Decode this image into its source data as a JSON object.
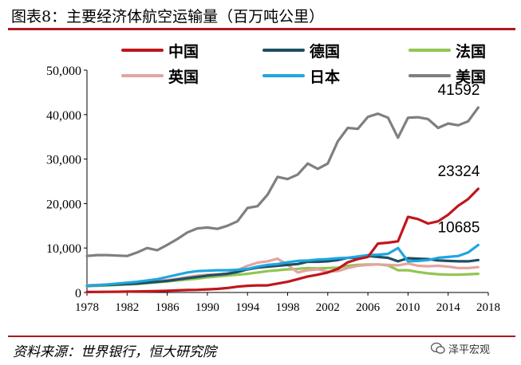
{
  "title": "图表8：主要经济体航空运输量（百万吨公里）",
  "source": "资料来源：世界银行，恒大研究院",
  "brand": "泽平宏观",
  "chart_data": {
    "type": "line",
    "title": "图表8：主要经济体航空运输量（百万吨公里）",
    "xlabel": "",
    "ylabel": "",
    "xlim": [
      1978,
      2018
    ],
    "ylim": [
      0,
      50000
    ],
    "x_ticks": [
      "1978",
      "1982",
      "1986",
      "1990",
      "1994",
      "1998",
      "2002",
      "2006",
      "2010",
      "2014",
      "2018"
    ],
    "y_ticks": [
      "0",
      "10,000",
      "20,000",
      "30,000",
      "40,000",
      "50,000"
    ],
    "x": [
      1978,
      1979,
      1980,
      1981,
      1982,
      1983,
      1984,
      1985,
      1986,
      1987,
      1988,
      1989,
      1990,
      1991,
      1992,
      1993,
      1994,
      1995,
      1996,
      1997,
      1998,
      1999,
      2000,
      2001,
      2002,
      2003,
      2004,
      2005,
      2006,
      2007,
      2008,
      2009,
      2010,
      2011,
      2012,
      2013,
      2014,
      2015,
      2016,
      2017
    ],
    "series": [
      {
        "name": "中国",
        "color": "#c0161c",
        "values": [
          100,
          120,
          140,
          170,
          200,
          230,
          270,
          330,
          400,
          470,
          550,
          600,
          700,
          800,
          1000,
          1300,
          1500,
          1600,
          1600,
          2000,
          2400,
          3000,
          3600,
          4000,
          4500,
          5300,
          6800,
          7500,
          8000,
          11000,
          11200,
          11500,
          17000,
          16500,
          15500,
          16000,
          17500,
          19500,
          21000,
          23324
        ]
      },
      {
        "name": "德国",
        "color": "#1e4e63",
        "values": [
          1500,
          1600,
          1700,
          1800,
          1900,
          2000,
          2200,
          2400,
          2600,
          2900,
          3200,
          3500,
          3800,
          4000,
          4200,
          4600,
          5200,
          5600,
          5800,
          6000,
          6200,
          6400,
          6900,
          6900,
          7000,
          7300,
          7800,
          7800,
          8200,
          8000,
          7800,
          7000,
          7700,
          7600,
          7500,
          7200,
          7100,
          7000,
          7000,
          7300
        ]
      },
      {
        "name": "法国",
        "color": "#92c552",
        "values": [
          1400,
          1500,
          1600,
          1700,
          1800,
          1900,
          2100,
          2300,
          2500,
          2700,
          2900,
          3100,
          3400,
          3600,
          3800,
          4000,
          4200,
          4500,
          4800,
          5000,
          5200,
          5300,
          5500,
          5400,
          5500,
          5600,
          6000,
          6200,
          6300,
          6300,
          6100,
          5000,
          5000,
          4600,
          4300,
          4100,
          4000,
          4000,
          4100,
          4200
        ]
      },
      {
        "name": "英国",
        "color": "#e3a4a0",
        "values": [
          1600,
          1700,
          1800,
          1800,
          1900,
          2000,
          2300,
          2600,
          2800,
          3100,
          3500,
          3800,
          4000,
          4100,
          4300,
          5000,
          6000,
          6700,
          7000,
          7600,
          6200,
          4500,
          5000,
          5200,
          4700,
          4800,
          5500,
          6000,
          6200,
          6300,
          6200,
          6100,
          6500,
          6000,
          5900,
          6000,
          5800,
          5500,
          5500,
          5700
        ]
      },
      {
        "name": "日本",
        "color": "#1fa6e0",
        "values": [
          1500,
          1600,
          1800,
          2000,
          2200,
          2400,
          2700,
          3000,
          3500,
          4000,
          4500,
          4800,
          4900,
          5000,
          5000,
          5100,
          5300,
          5800,
          6200,
          6400,
          6800,
          7100,
          7200,
          7400,
          7500,
          7700,
          7800,
          8100,
          8400,
          8500,
          8700,
          10000,
          7000,
          7100,
          7300,
          7800,
          8000,
          8200,
          9000,
          10685
        ]
      },
      {
        "name": "美国",
        "color": "#7f7f7f",
        "values": [
          8200,
          8400,
          8400,
          8300,
          8200,
          9000,
          10000,
          9500,
          10700,
          12000,
          13500,
          14400,
          14600,
          14300,
          15000,
          16000,
          19000,
          19400,
          22000,
          26000,
          25500,
          26500,
          29000,
          27800,
          29000,
          34000,
          37000,
          36800,
          39500,
          40200,
          39300,
          34800,
          39300,
          39400,
          39000,
          37000,
          38000,
          37600,
          38500,
          41592
        ]
      }
    ],
    "annotations": [
      {
        "series": "美国",
        "text": "41592"
      },
      {
        "series": "中国",
        "text": "23324"
      },
      {
        "series": "日本",
        "text": "10685"
      }
    ],
    "legend_position": "top"
  }
}
